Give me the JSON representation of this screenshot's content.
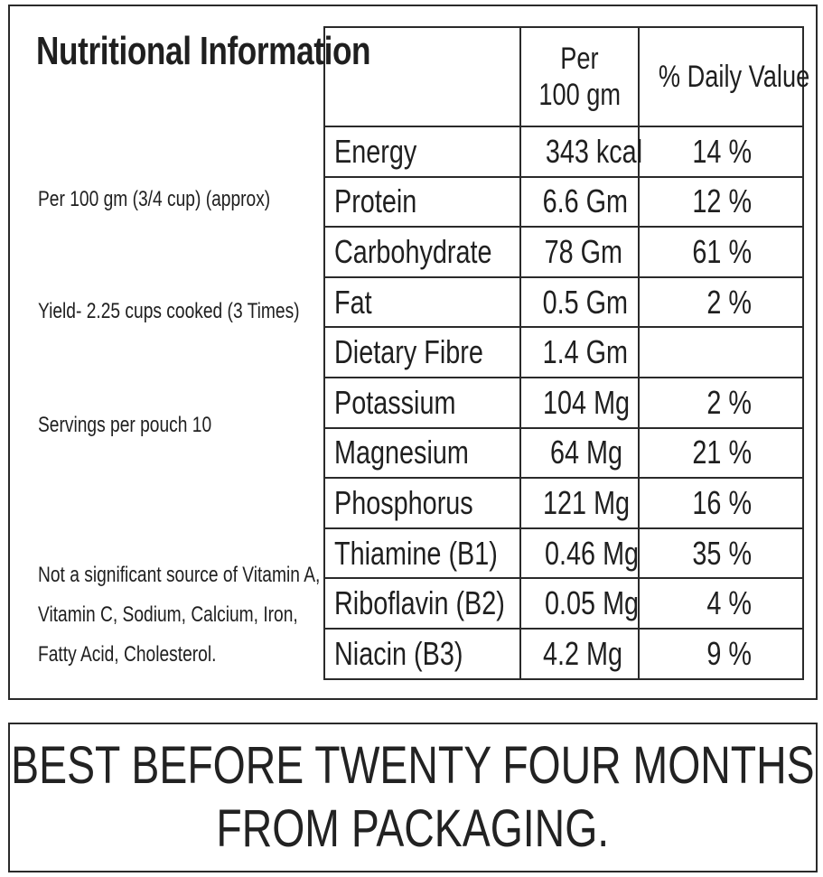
{
  "title": "Nutritional Information",
  "notes": {
    "serving": "Per 100 gm (3/4 cup) (approx)",
    "yield": "Yield- 2.25 cups cooked (3 Times)",
    "servings": "Servings per pouch 10",
    "vitamins": [
      "Not a significant source of Vitamin A,",
      "Vitamin C, Sodium, Calcium, Iron,",
      "Fatty Acid, Cholesterol."
    ]
  },
  "table": {
    "headers": {
      "per_line1": "Per",
      "per_line2": "100 gm",
      "daily_value": "% Daily Value"
    },
    "rows": [
      {
        "nutrient": "Energy",
        "amount": "343 kcal",
        "daily_value": "14 %"
      },
      {
        "nutrient": "Protein",
        "amount": "6.6 Gm",
        "daily_value": "12 %"
      },
      {
        "nutrient": "Carbohydrate",
        "amount": "78 Gm",
        "daily_value": "61 %"
      },
      {
        "nutrient": "Fat",
        "amount": "0.5 Gm",
        "daily_value": "2 %"
      },
      {
        "nutrient": "Dietary Fibre",
        "amount": "1.4 Gm",
        "daily_value": ""
      },
      {
        "nutrient": "Potassium",
        "amount": "104 Mg",
        "daily_value": "2 %"
      },
      {
        "nutrient": "Magnesium",
        "amount": "64 Mg",
        "daily_value": "21 %"
      },
      {
        "nutrient": "Phosphorus",
        "amount": "121 Mg",
        "daily_value": "16 %"
      },
      {
        "nutrient": "Thiamine (B1)",
        "amount": "0.46 Mg",
        "daily_value": "35 %"
      },
      {
        "nutrient": "Riboflavin (B2)",
        "amount": "0.05 Mg",
        "daily_value": "4 %"
      },
      {
        "nutrient": "Niacin (B3)",
        "amount": "4.2 Mg",
        "daily_value": "9 %"
      }
    ]
  },
  "best_before": {
    "line1": "BEST BEFORE TWENTY FOUR MONTHS",
    "line2": "FROM PACKAGING."
  }
}
